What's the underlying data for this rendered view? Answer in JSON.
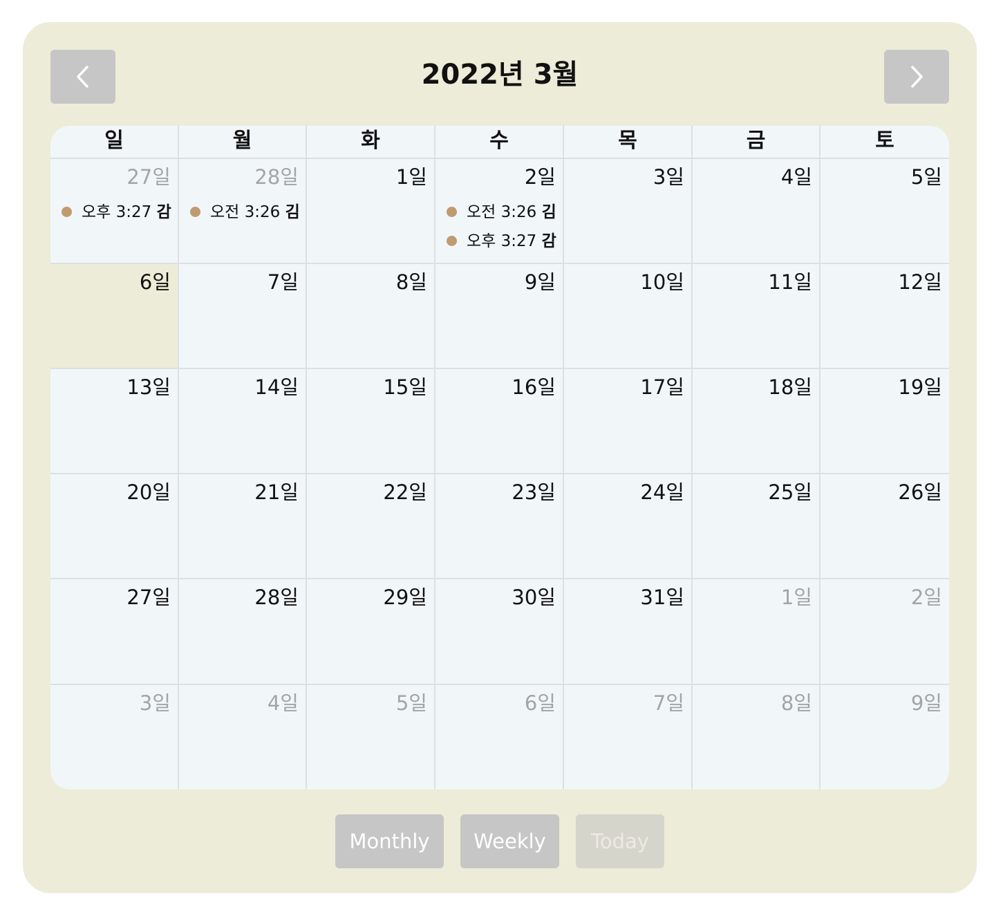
{
  "calendar": {
    "title": "2022년 3월",
    "weekdays": [
      "일",
      "월",
      "화",
      "수",
      "목",
      "금",
      "토"
    ],
    "nav": {
      "prev": "chevron-left-icon",
      "next": "chevron-right-icon"
    },
    "weeks": [
      [
        {
          "label": "27일",
          "other": true,
          "events": [
            {
              "time": "오후 3:27",
              "who": "감"
            }
          ]
        },
        {
          "label": "28일",
          "other": true,
          "events": [
            {
              "time": "오전 3:26",
              "who": "김"
            }
          ]
        },
        {
          "label": "1일",
          "events": []
        },
        {
          "label": "2일",
          "events": [
            {
              "time": "오전 3:26",
              "who": "김"
            },
            {
              "time": "오후 3:27",
              "who": "감"
            }
          ]
        },
        {
          "label": "3일",
          "events": []
        },
        {
          "label": "4일",
          "events": []
        },
        {
          "label": "5일",
          "events": []
        }
      ],
      [
        {
          "label": "6일",
          "today": true,
          "events": []
        },
        {
          "label": "7일",
          "events": []
        },
        {
          "label": "8일",
          "events": []
        },
        {
          "label": "9일",
          "events": []
        },
        {
          "label": "10일",
          "events": []
        },
        {
          "label": "11일",
          "events": []
        },
        {
          "label": "12일",
          "events": []
        }
      ],
      [
        {
          "label": "13일",
          "events": []
        },
        {
          "label": "14일",
          "events": []
        },
        {
          "label": "15일",
          "events": []
        },
        {
          "label": "16일",
          "events": []
        },
        {
          "label": "17일",
          "events": []
        },
        {
          "label": "18일",
          "events": []
        },
        {
          "label": "19일",
          "events": []
        }
      ],
      [
        {
          "label": "20일",
          "events": []
        },
        {
          "label": "21일",
          "events": []
        },
        {
          "label": "22일",
          "events": []
        },
        {
          "label": "23일",
          "events": []
        },
        {
          "label": "24일",
          "events": []
        },
        {
          "label": "25일",
          "events": []
        },
        {
          "label": "26일",
          "events": []
        }
      ],
      [
        {
          "label": "27일",
          "events": []
        },
        {
          "label": "28일",
          "events": []
        },
        {
          "label": "29일",
          "events": []
        },
        {
          "label": "30일",
          "events": []
        },
        {
          "label": "31일",
          "events": []
        },
        {
          "label": "1일",
          "other": true,
          "events": []
        },
        {
          "label": "2일",
          "other": true,
          "events": []
        }
      ],
      [
        {
          "label": "3일",
          "other": true,
          "events": []
        },
        {
          "label": "4일",
          "other": true,
          "events": []
        },
        {
          "label": "5일",
          "other": true,
          "events": []
        },
        {
          "label": "6일",
          "other": true,
          "events": []
        },
        {
          "label": "7일",
          "other": true,
          "events": []
        },
        {
          "label": "8일",
          "other": true,
          "events": []
        },
        {
          "label": "9일",
          "other": true,
          "events": []
        }
      ]
    ]
  },
  "view_buttons": {
    "monthly": "Monthly",
    "weekly": "Weekly",
    "today": "Today",
    "today_disabled": true
  },
  "colors": {
    "panel": "#edecd8",
    "grid": "#f1f7f9",
    "event_dot": "#c09b72",
    "button": "#c6c6c6"
  }
}
